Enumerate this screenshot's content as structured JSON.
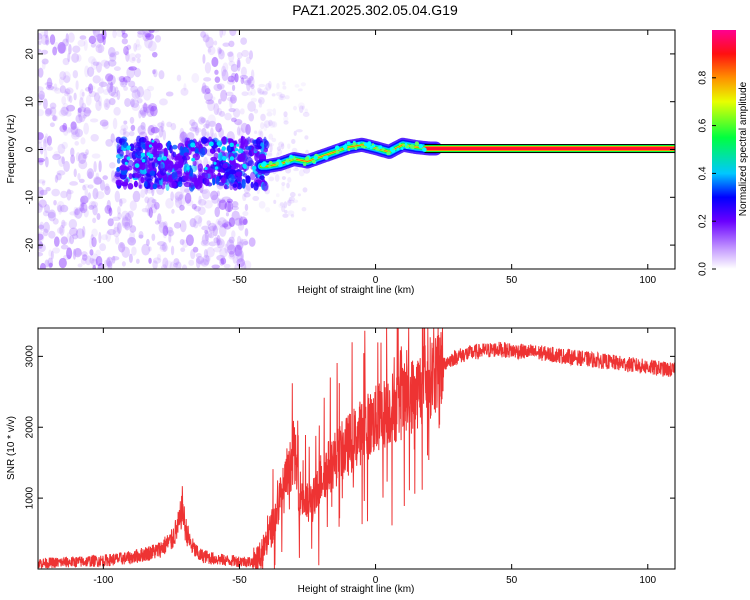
{
  "figure": {
    "title": "PAZ1.2025.302.05.04.G19"
  },
  "chart_data": [
    {
      "type": "heatmap",
      "xlabel": "Height of straight line (km)",
      "ylabel": "Frequency (Hz)",
      "xlim": [
        -124,
        110
      ],
      "ylim": [
        -25,
        25
      ],
      "xticks": [
        -100,
        -50,
        0,
        50,
        100
      ],
      "xtick_labels": [
        "-100",
        "-50",
        "0",
        "50",
        "100"
      ],
      "yticks": [
        -20,
        -10,
        0,
        10,
        20
      ],
      "ytick_labels": [
        "-20",
        "-10",
        "0",
        "10",
        "20"
      ],
      "colorbar": {
        "label": "Normalized spectral amplitude",
        "range": [
          0,
          1
        ],
        "ticks": [
          0,
          0.2,
          0.4,
          0.6,
          0.8
        ],
        "tick_labels": [
          "0.0",
          "0.2",
          "0.4",
          "0.6",
          "0.8"
        ]
      },
      "ridge": {
        "description_values_km": [
          -40,
          -35,
          -30,
          -25,
          -20,
          -15,
          -10,
          -5,
          0,
          5,
          10,
          15,
          20,
          25,
          110
        ],
        "frequency_hz": [
          -3.5,
          -3,
          -2,
          -2.5,
          -1.5,
          -0.5,
          0.5,
          1,
          0.3,
          -0.5,
          1,
          0.5,
          0.2,
          0.2,
          0.2
        ]
      },
      "noise_region_km": [
        -124,
        -45
      ]
    },
    {
      "type": "line",
      "xlabel": "Height of straight line (km)",
      "ylabel": "SNR (10 * v/v)",
      "xlim": [
        -124,
        110
      ],
      "ylim": [
        0,
        3400
      ],
      "xticks": [
        -100,
        -50,
        0,
        50,
        100
      ],
      "xtick_labels": [
        "-100",
        "-50",
        "0",
        "50",
        "100"
      ],
      "yticks": [
        1000,
        2000,
        3000
      ],
      "ytick_labels": [
        "1000",
        "2000",
        "3000"
      ],
      "color": "#ee3333",
      "series": [
        {
          "name": "SNR",
          "x": [
            -124,
            -110,
            -100,
            -90,
            -80,
            -75,
            -72,
            -71,
            -70,
            -68,
            -65,
            -60,
            -55,
            -50,
            -45,
            -42,
            -40,
            -37,
            -35,
            -32,
            -30,
            -29,
            -28,
            -25,
            -22,
            -20,
            -15,
            -10,
            -5,
            0,
            5,
            10,
            15,
            20,
            25,
            30,
            35,
            40,
            45,
            50,
            60,
            70,
            80,
            90,
            100,
            110
          ],
          "values": [
            80,
            100,
            120,
            160,
            260,
            400,
            650,
            900,
            600,
            350,
            200,
            150,
            120,
            110,
            100,
            200,
            400,
            700,
            1000,
            1300,
            1700,
            1400,
            1100,
            900,
            1000,
            1300,
            1550,
            1750,
            1950,
            2100,
            2250,
            2350,
            2500,
            2700,
            2900,
            3000,
            3050,
            3080,
            3100,
            3080,
            3050,
            3000,
            2950,
            2900,
            2850,
            2800
          ]
        }
      ]
    }
  ]
}
